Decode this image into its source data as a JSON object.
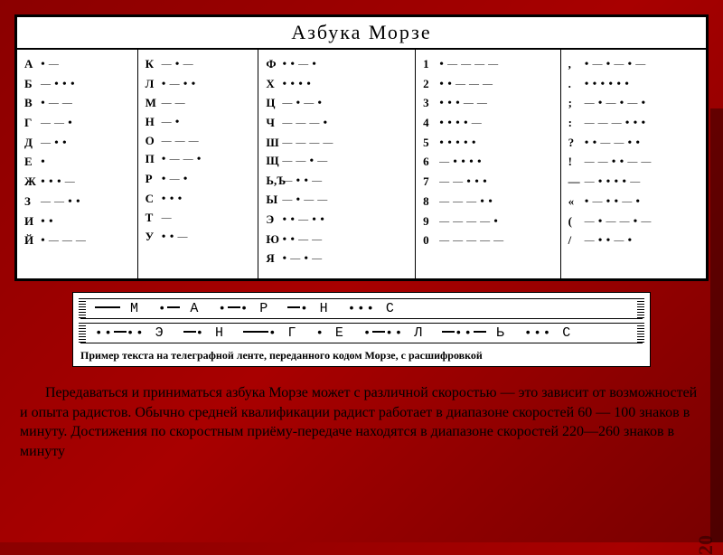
{
  "title": "Азбука  Морзе",
  "columns": [
    [
      {
        "ch": "А",
        "code": ".-"
      },
      {
        "ch": "Б",
        "code": "-..."
      },
      {
        "ch": "В",
        "code": ".--"
      },
      {
        "ch": "Г",
        "code": "--."
      },
      {
        "ch": "Д",
        "code": "-.."
      },
      {
        "ch": "Е",
        "code": "."
      },
      {
        "ch": "Ж",
        "code": "...-"
      },
      {
        "ch": "З",
        "code": "--.."
      },
      {
        "ch": "И",
        "code": ".."
      },
      {
        "ch": "Й",
        "code": ".---"
      }
    ],
    [
      {
        "ch": "К",
        "code": "-.-"
      },
      {
        "ch": "Л",
        "code": ".-.."
      },
      {
        "ch": "М",
        "code": "--"
      },
      {
        "ch": "Н",
        "code": "-."
      },
      {
        "ch": "О",
        "code": "---"
      },
      {
        "ch": "П",
        "code": ".--."
      },
      {
        "ch": "Р",
        "code": ".-."
      },
      {
        "ch": "С",
        "code": "..."
      },
      {
        "ch": "Т",
        "code": "-"
      },
      {
        "ch": "У",
        "code": "..-"
      }
    ],
    [
      {
        "ch": "Ф",
        "code": "..-."
      },
      {
        "ch": "Х",
        "code": "...."
      },
      {
        "ch": "Ц",
        "code": "-.-."
      },
      {
        "ch": "Ч",
        "code": "---."
      },
      {
        "ch": "Ш",
        "code": "----"
      },
      {
        "ch": "Щ",
        "code": "--.-"
      },
      {
        "ch": "Ь,Ъ",
        "code": "-..-"
      },
      {
        "ch": "Ы",
        "code": "-.--"
      },
      {
        "ch": "Э",
        "code": "..-.."
      },
      {
        "ch": "Ю",
        "code": "..--"
      },
      {
        "ch": "Я",
        "code": ".-.-"
      }
    ],
    [
      {
        "ch": "1",
        "code": ".----"
      },
      {
        "ch": "2",
        "code": "..---"
      },
      {
        "ch": "3",
        "code": "...--"
      },
      {
        "ch": "4",
        "code": "....-"
      },
      {
        "ch": "5",
        "code": "....."
      },
      {
        "ch": "6",
        "code": "-...."
      },
      {
        "ch": "7",
        "code": "--..."
      },
      {
        "ch": "8",
        "code": "---.."
      },
      {
        "ch": "9",
        "code": "----."
      },
      {
        "ch": "0",
        "code": "-----"
      }
    ],
    [
      {
        "ch": ",",
        "code": ".-.-.-"
      },
      {
        "ch": ".",
        "code": "......"
      },
      {
        "ch": ";",
        "code": "-.-.-."
      },
      {
        "ch": ":",
        "code": "---..."
      },
      {
        "ch": "?",
        "code": "..--.."
      },
      {
        "ch": "!",
        "code": "--..--"
      },
      {
        "ch": "—",
        "code": "-....-"
      },
      {
        "ch": "«",
        "code": ".-..-."
      },
      {
        "ch": "(",
        "code": "-.--.-"
      },
      {
        "ch": "/",
        "code": "-..-."
      }
    ]
  ],
  "tape": {
    "line1_letters": [
      "М",
      "А",
      "Р",
      "Н",
      "С"
    ],
    "line1_codes": [
      "--",
      ".-",
      ".-.",
      "-.",
      "..."
    ],
    "line2_letters": [
      "Э",
      "Н",
      "Г",
      "Е",
      "Л",
      "Ь",
      "С"
    ],
    "line2_codes": [
      "..-..",
      "-.",
      "--.",
      ".",
      ".-..",
      "-..-",
      "..."
    ],
    "caption": "Пример текста на телеграфной ленте, переданного кодом Морзе, с расшифровкой"
  },
  "paragraph": "Передаваться и приниматься азбука Морзе может с различной скоростью — это зависит от возможностей и опыта радистов. Обычно средней квалификации радист работает в диапазоне скоростей 60 — 100 знаков в минуту. Достижения по скоростным приёму-передаче находятся в диапазоне скоростей 220—260 знаков в минуту",
  "page_number": "20",
  "colors": {
    "bg_start": "#8b0000",
    "bg_end": "#780000",
    "panel": "#ffffff",
    "border": "#000000",
    "text": "#000000"
  },
  "font": {
    "title_size": 22,
    "cell_size": 13,
    "body_size": 16,
    "caption_size": 12
  }
}
